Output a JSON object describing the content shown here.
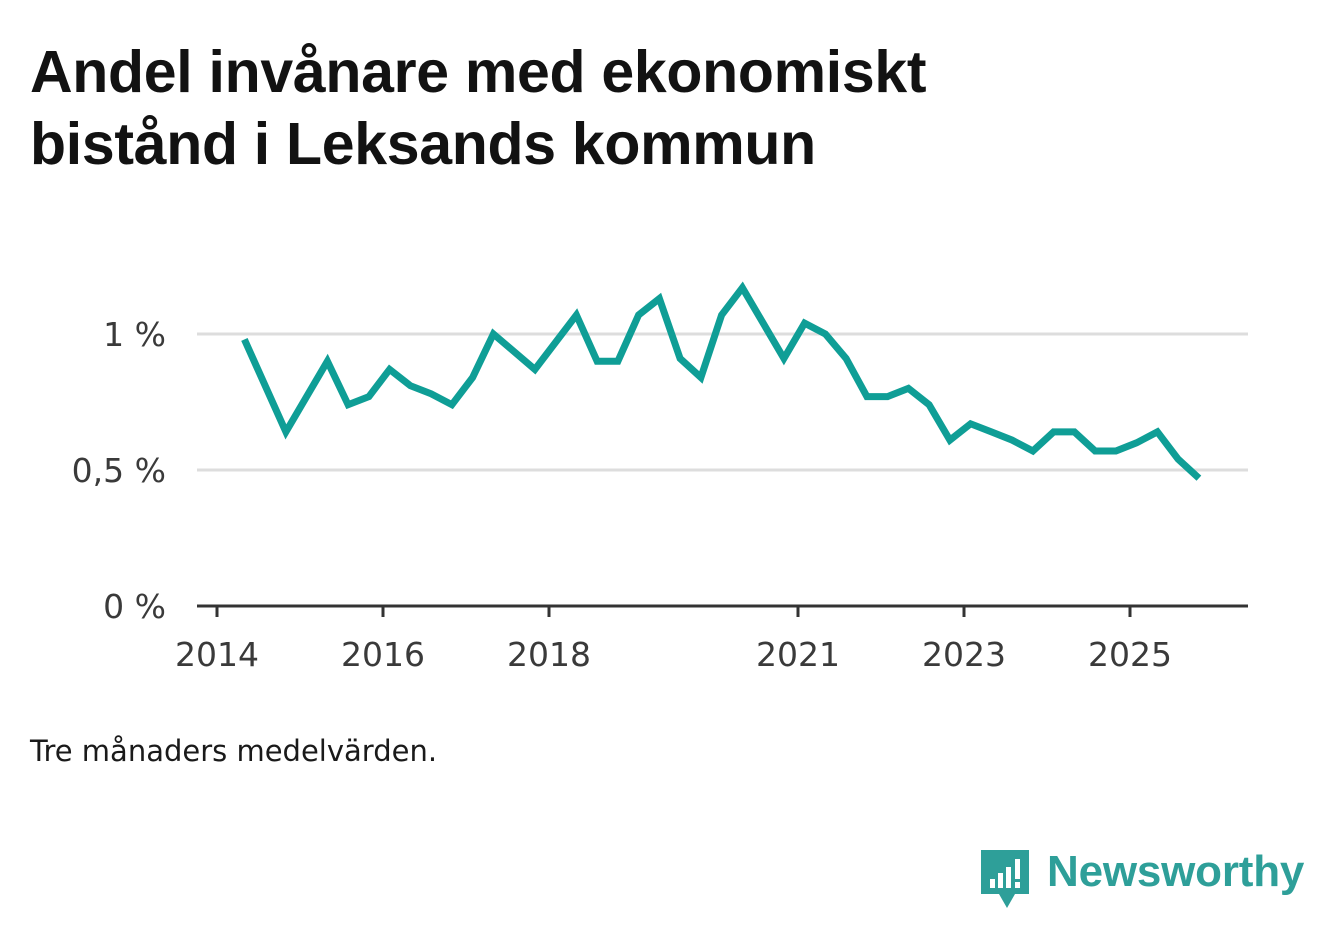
{
  "chart_data": {
    "type": "line",
    "title": "Andel invånare med ekonomiskt bistånd i Leksands kommun",
    "xlabel": "",
    "ylabel": "",
    "ylim": [
      0,
      1.2
    ],
    "grid": true,
    "y_ticks": [
      {
        "value": 0,
        "label": "0 %"
      },
      {
        "value": 0.5,
        "label": "0,5 %"
      },
      {
        "value": 1,
        "label": "1 %"
      }
    ],
    "x_ticks": [
      {
        "value": 2014,
        "label": "2014"
      },
      {
        "value": 2016,
        "label": "2016"
      },
      {
        "value": 2018,
        "label": "2018"
      },
      {
        "value": 2021,
        "label": "2021"
      },
      {
        "value": 2023,
        "label": "2023"
      },
      {
        "value": 2025,
        "label": "2025"
      }
    ],
    "series": [
      {
        "name": "Andel invånare med ekonomiskt bistånd",
        "color": "#0f9e96",
        "x": [
          2014.33,
          2014.83,
          2015.33,
          2015.58,
          2015.83,
          2016.08,
          2016.33,
          2016.58,
          2016.83,
          2017.08,
          2017.33,
          2017.83,
          2018.33,
          2018.58,
          2018.83,
          2019.08,
          2019.33,
          2019.58,
          2019.83,
          2020.08,
          2020.33,
          2020.83,
          2021.08,
          2021.33,
          2021.58,
          2021.83,
          2022.08,
          2022.33,
          2022.58,
          2022.83,
          2023.08,
          2023.33,
          2023.58,
          2023.83,
          2024.08,
          2024.33,
          2024.58,
          2024.83,
          2025.08,
          2025.33,
          2025.58,
          2025.83
        ],
        "values": [
          0.98,
          0.64,
          0.9,
          0.74,
          0.77,
          0.87,
          0.81,
          0.78,
          0.74,
          0.84,
          1.0,
          0.87,
          1.07,
          0.9,
          0.9,
          1.07,
          1.13,
          0.91,
          0.84,
          1.07,
          1.17,
          0.91,
          1.04,
          1.0,
          0.91,
          0.77,
          0.77,
          0.8,
          0.74,
          0.61,
          0.67,
          0.64,
          0.61,
          0.57,
          0.64,
          0.64,
          0.57,
          0.57,
          0.6,
          0.64,
          0.54,
          0.47
        ]
      }
    ],
    "note": "Tre månaders medelvärden."
  },
  "brand": {
    "name": "Newsworthy",
    "color": "#2e9f99"
  },
  "colors": {
    "line": "#0f9e96",
    "grid": "#dddddd",
    "axis": "#333333"
  }
}
